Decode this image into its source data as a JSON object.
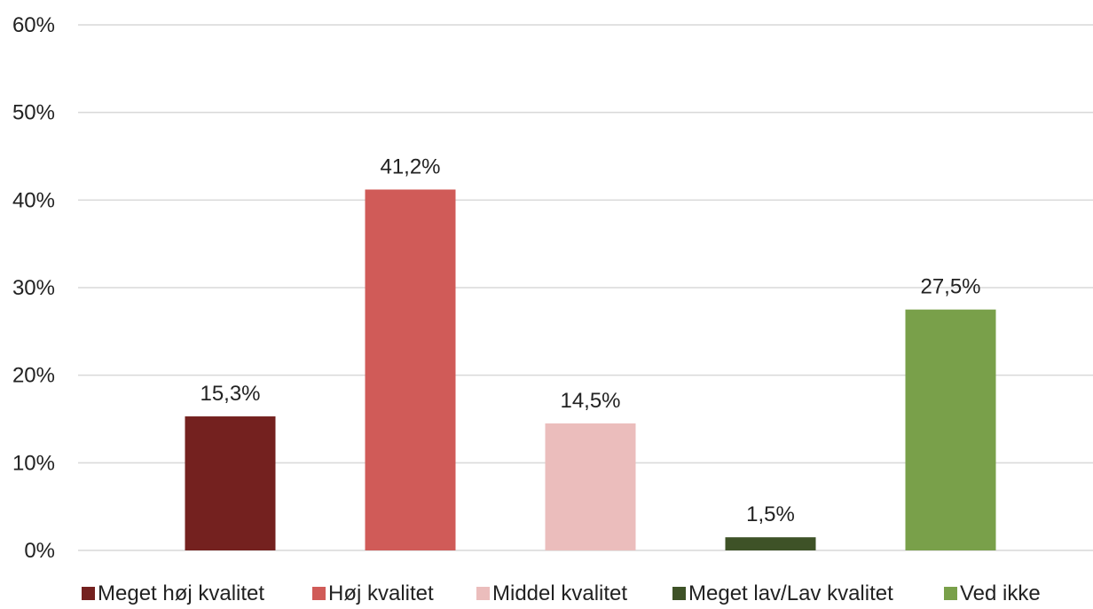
{
  "chart_data": {
    "type": "bar",
    "categories": [
      "Meget høj kvalitet",
      "Høj kvalitet",
      "Middel kvalitet",
      "Meget lav/Lav kvalitet",
      "Ved ikke"
    ],
    "values": [
      15.3,
      41.2,
      14.5,
      1.5,
      27.5
    ],
    "value_labels": [
      "15,3%",
      "41,2%",
      "14,5%",
      "1,5%",
      "27,5%"
    ],
    "colors": [
      "#74211f",
      "#d05b58",
      "#ebbdbc",
      "#3e5227",
      "#79a04a"
    ],
    "ylim": [
      0,
      60
    ],
    "yticks": [
      0,
      10,
      20,
      30,
      40,
      50,
      60
    ],
    "ytick_labels": [
      "0%",
      "10%",
      "20%",
      "30%",
      "40%",
      "50%",
      "60%"
    ],
    "gridlines": true,
    "legend": {
      "position": "bottom",
      "entries": [
        "Meget høj kvalitet",
        "Høj kvalitet",
        "Middel kvalitet",
        "Meget lav/Lav kvalitet",
        "Ved ikke"
      ]
    },
    "title": "",
    "xlabel": "",
    "ylabel": ""
  }
}
